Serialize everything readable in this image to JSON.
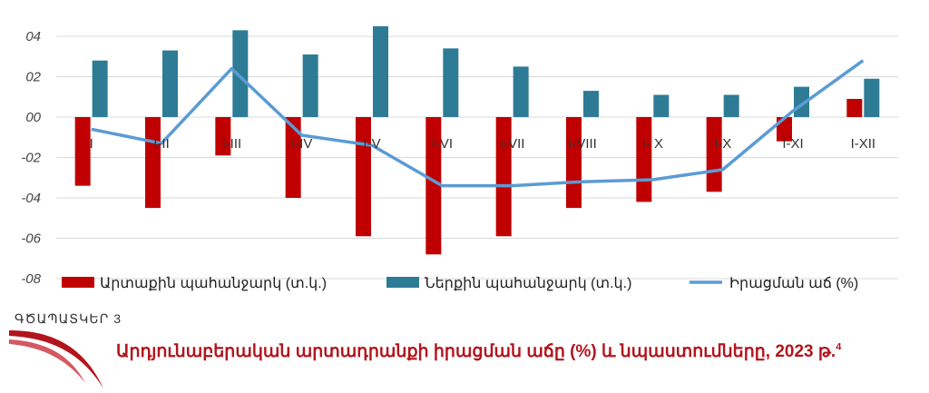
{
  "figure": {
    "label": "ԳԾԱՊԱՏԿԵՐ 3",
    "title": "Արդյունաբերական արտադրանքի իրացման աճը (%) և նպաստումները, 2023 թ.",
    "title_footnote": "4"
  },
  "chart_data": {
    "type": "bar",
    "categories": [
      "I",
      "I-II",
      "I-III",
      "I-IV",
      "I-V",
      "I-VI",
      "I-VII",
      "I-VIII",
      "I-IX",
      "I-X",
      "I-XI",
      "I-XII"
    ],
    "category_labels": [
      "I",
      "I-II",
      "I-III",
      "I-IV",
      "I-V",
      "I-VI",
      "I-VII",
      "I-VIII",
      "I- X",
      "I-X",
      "I-XI",
      "I-XII"
    ],
    "series": [
      {
        "name": "Արտաքին պահանջարկ (տ.կ.)",
        "kind": "bar",
        "color": "#c00000",
        "values": [
          -3.4,
          -4.5,
          -1.9,
          -4.0,
          -5.9,
          -6.8,
          -5.9,
          -4.5,
          -4.2,
          -3.7,
          -1.2,
          0.9
        ]
      },
      {
        "name": "Ներքին պահանջարկ (տ.կ.)",
        "kind": "bar",
        "color": "#2e7b96",
        "values": [
          2.8,
          3.3,
          4.3,
          3.1,
          4.5,
          3.4,
          2.5,
          1.3,
          1.1,
          1.1,
          1.5,
          1.9
        ]
      },
      {
        "name": "Իրացման աճ (%)",
        "kind": "line",
        "color": "#5b9bd5",
        "values": [
          -0.6,
          -1.3,
          2.4,
          -0.9,
          -1.4,
          -3.4,
          -3.4,
          -3.2,
          -3.1,
          -2.6,
          0.3,
          2.8
        ]
      }
    ],
    "y_ticks": [
      "04",
      "02",
      "00",
      "-02",
      "-04",
      "-06",
      "-08"
    ],
    "ylim": [
      -8,
      4.5
    ],
    "grid": true,
    "legend_position": "bottom"
  }
}
